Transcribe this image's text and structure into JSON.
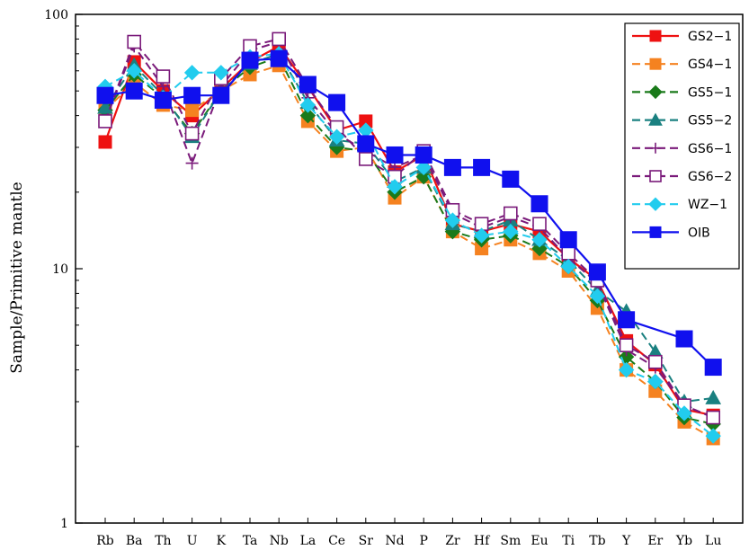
{
  "chart_data": {
    "type": "line",
    "title": "",
    "xlabel": "",
    "ylabel": "Sample/Primitive mantle",
    "yscale": "log",
    "ylim": [
      1,
      100
    ],
    "yticks": [
      "1",
      "10",
      "100"
    ],
    "grid": false,
    "legend_position": "top-right",
    "categories": [
      "Rb",
      "Ba",
      "Th",
      "U",
      "K",
      "Ta",
      "Nb",
      "La",
      "Ce",
      "Sr",
      "Nd",
      "P",
      "Zr",
      "Hf",
      "Sm",
      "Eu",
      "Ti",
      "Tb",
      "Y",
      "Er",
      "Yb",
      "Lu"
    ],
    "series": [
      {
        "name": "GS2−1",
        "color": "#ee1111",
        "marker": "square-filled",
        "dashed": false,
        "values": [
          31.5,
          65,
          50,
          40,
          51,
          65,
          75,
          52,
          35,
          38,
          24,
          28,
          15,
          14,
          15,
          14,
          11,
          9.0,
          5.2,
          4.2,
          2.8,
          2.65
        ]
      },
      {
        "name": "GS4−1",
        "color": "#f58220",
        "marker": "square-filled",
        "dashed": true,
        "values": [
          42,
          54,
          44,
          42,
          50,
          58,
          63,
          38,
          29,
          30,
          19,
          23,
          14,
          12,
          13,
          11.5,
          9.8,
          7.0,
          4.0,
          3.3,
          2.5,
          2.15
        ]
      },
      {
        "name": "GS5−1",
        "color": "#1a7a1a",
        "marker": "diamond-filled",
        "dashed": true,
        "values": [
          42,
          58,
          47,
          34,
          50,
          62,
          68,
          40,
          30,
          29,
          20,
          23,
          14,
          13,
          13.5,
          12,
          10.2,
          7.5,
          4.5,
          3.6,
          2.6,
          2.45
        ]
      },
      {
        "name": "GS5−2",
        "color": "#1a8080",
        "marker": "triangle-filled",
        "dashed": true,
        "values": [
          43,
          63,
          48,
          33,
          50,
          64,
          70,
          45,
          32,
          31,
          22,
          25,
          15,
          14,
          15.5,
          13,
          10.8,
          8.2,
          6.8,
          4.7,
          3.0,
          3.1
        ]
      },
      {
        "name": "GS6−1",
        "color": "#7a1a7a",
        "marker": "plus",
        "dashed": true,
        "values": [
          38,
          75,
          52,
          26,
          52,
          72,
          78,
          47,
          34,
          29,
          25,
          28,
          16.5,
          14.5,
          16,
          14.5,
          11,
          8.8,
          4.8,
          4.1,
          2.9,
          2.6
        ]
      },
      {
        "name": "GS6−2",
        "color": "#7a1a7a",
        "marker": "square-open",
        "dashed": true,
        "values": [
          38,
          78,
          57,
          34,
          56,
          75,
          80,
          52,
          36,
          27,
          23,
          29,
          17,
          15,
          16.5,
          15,
          11.5,
          9.0,
          5.0,
          4.3,
          2.9,
          2.6
        ]
      },
      {
        "name": "WZ−1",
        "color": "#22ccee",
        "marker": "diamond-filled",
        "dashed": true,
        "values": [
          52,
          60,
          47,
          59,
          59,
          68,
          70,
          44,
          33,
          35,
          21,
          25,
          15.5,
          13.5,
          14,
          13,
          10.2,
          7.8,
          4.0,
          3.6,
          2.7,
          2.2
        ]
      },
      {
        "name": "OIB",
        "color": "#1010ee",
        "marker": "square-filled-large",
        "dashed": false,
        "values": [
          48,
          50,
          46,
          48,
          48,
          66,
          67,
          53,
          45,
          31,
          28,
          28,
          25,
          25,
          22.5,
          18,
          13,
          9.7,
          6.3,
          null,
          5.3,
          4.1
        ]
      }
    ]
  }
}
